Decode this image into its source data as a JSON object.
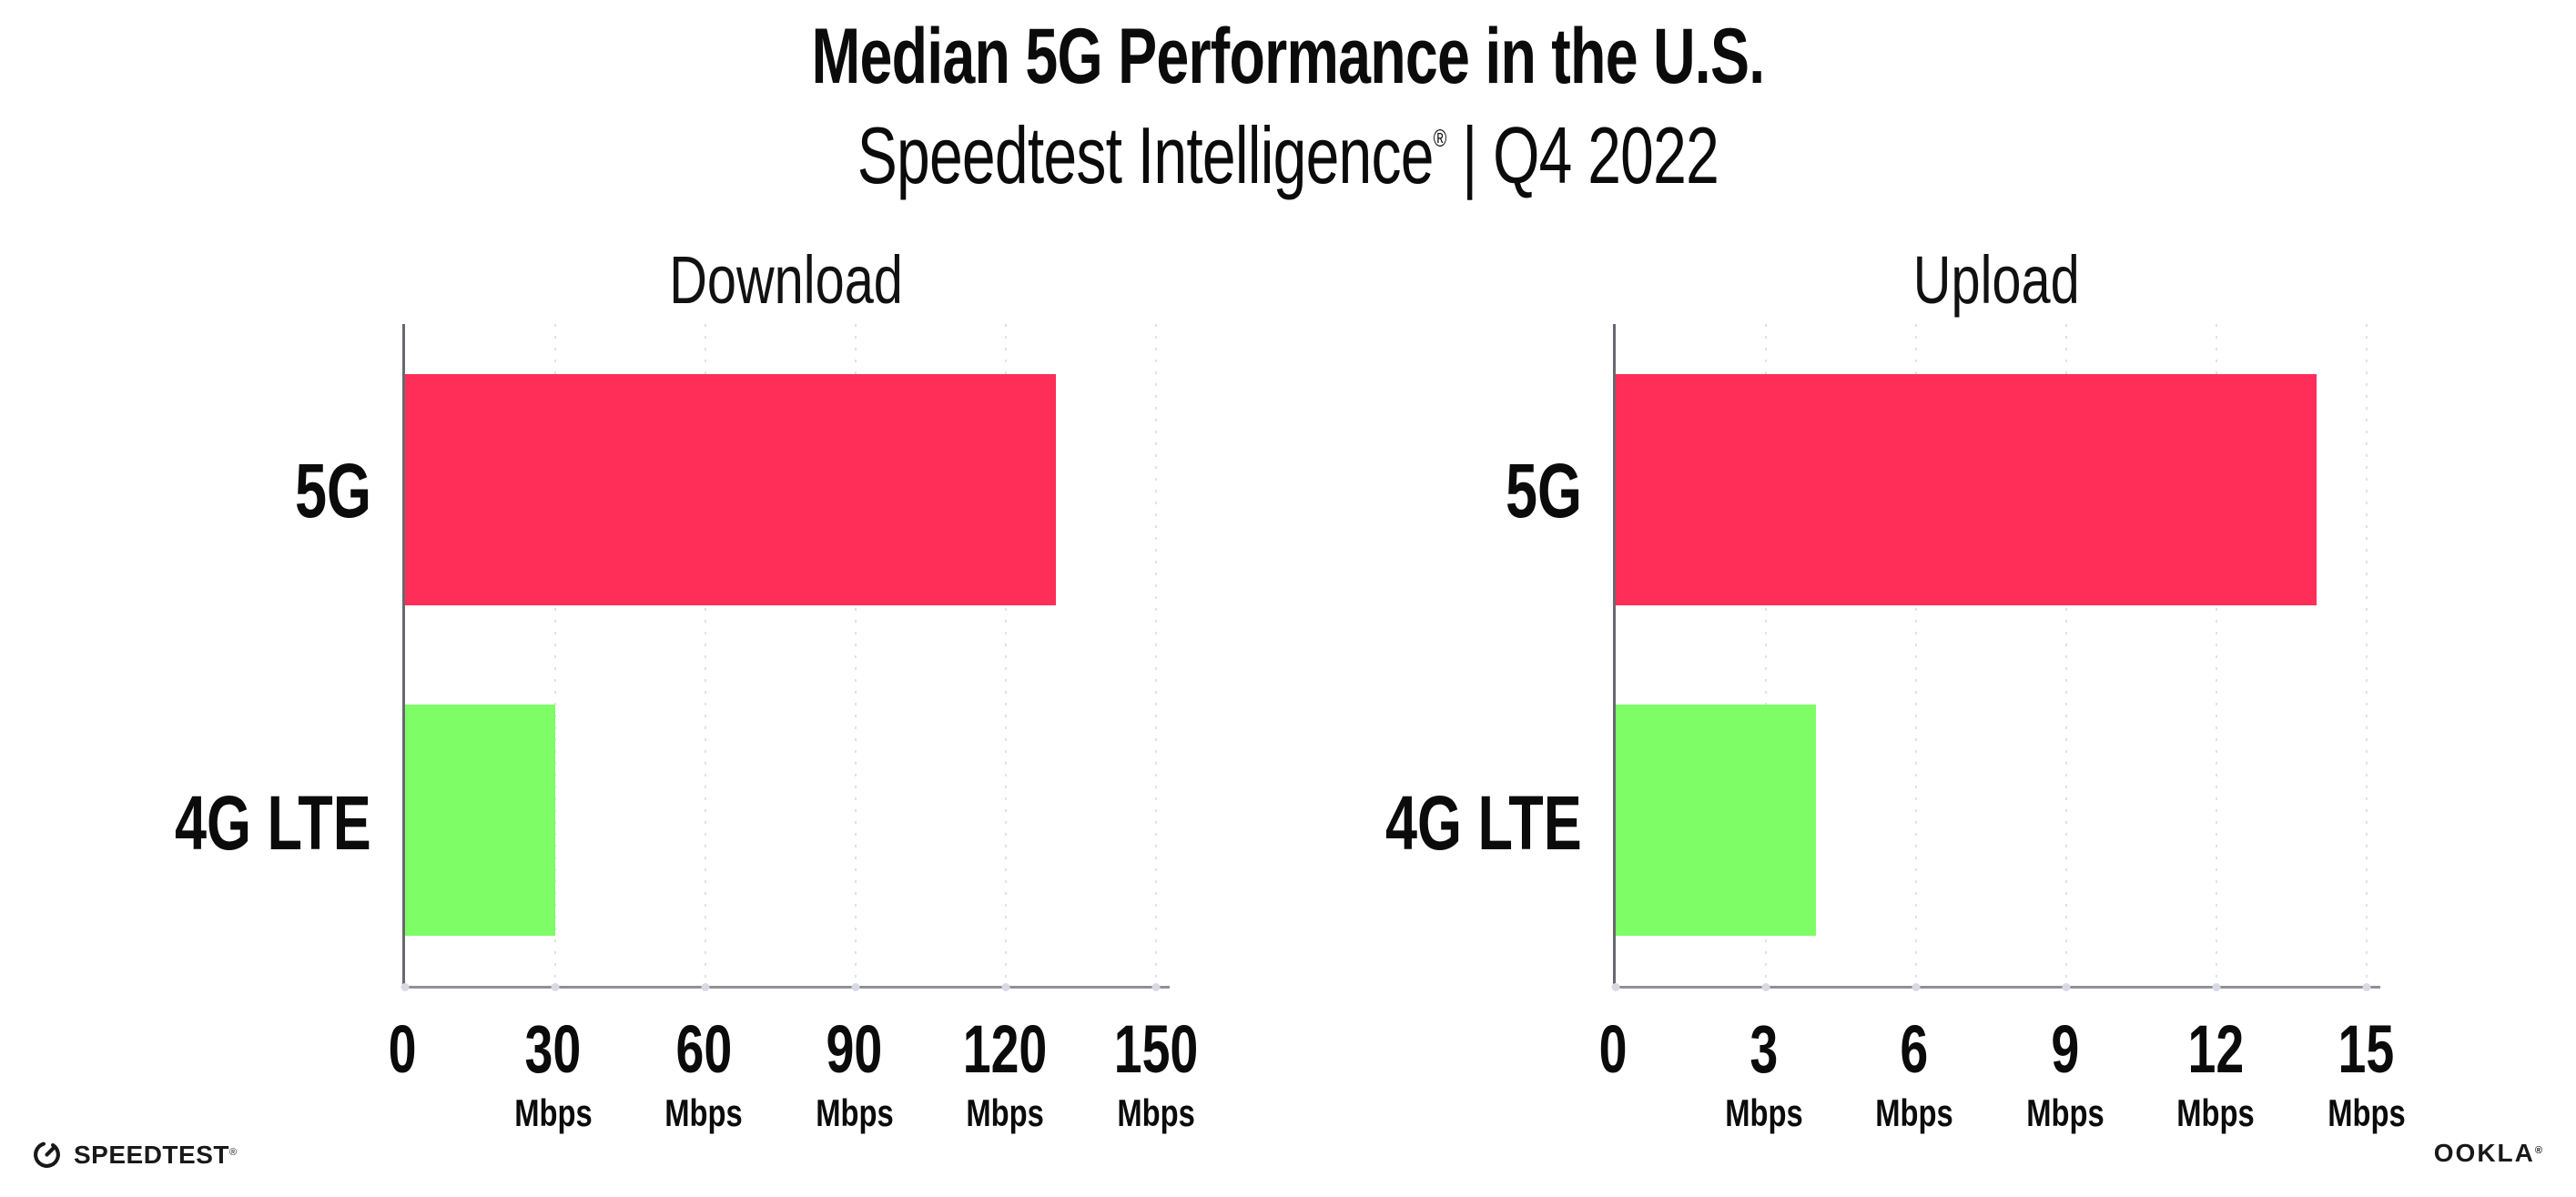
{
  "header": {
    "title": "Median 5G Performance in the U.S.",
    "subtitle_product": "Speedtest Intelligence",
    "subtitle_mark": "®",
    "subtitle_period": " | Q4 2022"
  },
  "colors": {
    "bar_5g": "#FF2E59",
    "bar_4g_lte": "#7EFD66",
    "gridline": "#E1E1EB",
    "x_axis_line": "#90909A",
    "y_axis_line": "#686870",
    "text": "#0B0B0B",
    "background": "#FFFFFF"
  },
  "chart_data": [
    {
      "type": "bar",
      "orientation": "horizontal",
      "title": "Download",
      "categories": [
        "5G",
        "4G LTE"
      ],
      "values": [
        130,
        30
      ],
      "unit": "Mbps",
      "xlim": [
        0,
        150
      ],
      "xticks": [
        0,
        30,
        60,
        90,
        120,
        150
      ],
      "xtick_labels": [
        "0",
        "30",
        "60",
        "90",
        "120",
        "150"
      ],
      "bar_colors": [
        "#FF2E59",
        "#7EFD66"
      ],
      "grid": "vertical-dotted",
      "legend": "none",
      "xlabel": "",
      "ylabel": ""
    },
    {
      "type": "bar",
      "orientation": "horizontal",
      "title": "Upload",
      "categories": [
        "5G",
        "4G LTE"
      ],
      "values": [
        14,
        4
      ],
      "unit": "Mbps",
      "xlim": [
        0,
        15
      ],
      "xticks": [
        0,
        3,
        6,
        9,
        12,
        15
      ],
      "xtick_labels": [
        "0",
        "3",
        "6",
        "9",
        "12",
        "15"
      ],
      "bar_colors": [
        "#FF2E59",
        "#7EFD66"
      ],
      "grid": "vertical-dotted",
      "legend": "none",
      "xlabel": "",
      "ylabel": ""
    }
  ],
  "footer": {
    "speedtest_label": "SPEEDTEST",
    "speedtest_mark": "®",
    "ookla_label": "OOKLA",
    "ookla_mark": "®"
  }
}
